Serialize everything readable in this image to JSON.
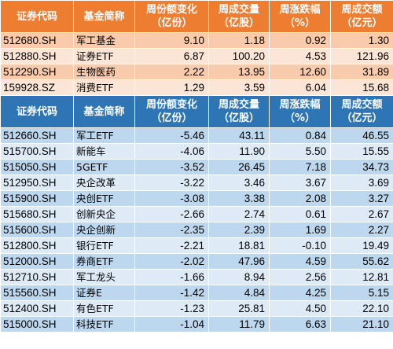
{
  "headers": [
    "证券代码",
    "基金简称",
    "周份额变化（亿份）",
    "周成交量（亿股）",
    "周涨跌幅（%）",
    "周成交额（亿元）"
  ],
  "top_rows": [
    [
      "512680.SH",
      "军工基金",
      "9.10",
      "1.18",
      "0.92",
      "1.30"
    ],
    [
      "512880.SH",
      "证券ETF",
      "6.87",
      "100.20",
      "4.53",
      "121.96"
    ],
    [
      "512290.SH",
      "生物医药",
      "2.22",
      "13.95",
      "12.60",
      "31.89"
    ],
    [
      "159928.SZ",
      "消费ETF",
      "1.29",
      "3.59",
      "6.04",
      "15.68"
    ]
  ],
  "bottom_rows": [
    [
      "512660.SH",
      "军工ETF",
      "-5.46",
      "43.11",
      "0.84",
      "46.55"
    ],
    [
      "515700.SH",
      "新能车",
      "-4.06",
      "11.90",
      "5.50",
      "15.55"
    ],
    [
      "515050.SH",
      "5GETF",
      "-3.52",
      "26.45",
      "7.18",
      "34.73"
    ],
    [
      "512950.SH",
      "央企改革",
      "-3.22",
      "3.46",
      "3.67",
      "3.69"
    ],
    [
      "515900.SH",
      "央创ETF",
      "-3.08",
      "3.38",
      "2.08",
      "3.27"
    ],
    [
      "515680.SH",
      "创新央企",
      "-2.66",
      "2.74",
      "0.61",
      "2.67"
    ],
    [
      "515600.SH",
      "央企创新",
      "-2.35",
      "2.39",
      "1.69",
      "2.27"
    ],
    [
      "512800.SH",
      "银行ETF",
      "-2.21",
      "18.81",
      "-0.10",
      "19.49"
    ],
    [
      "512000.SH",
      "券商ETF",
      "-2.02",
      "47.96",
      "4.59",
      "55.62"
    ],
    [
      "512710.SH",
      "军工龙头",
      "-1.66",
      "8.94",
      "2.56",
      "12.81"
    ],
    [
      "515560.SH",
      "证券E",
      "-1.42",
      "4.84",
      "4.25",
      "5.15"
    ],
    [
      "512400.SH",
      "有色ETF",
      "-1.23",
      "25.81",
      "4.50",
      "22.10"
    ],
    [
      "515000.SH",
      "科技ETF",
      "-1.04",
      "11.79",
      "6.63",
      "21.10"
    ]
  ],
  "colors": {
    "top_header": "#ed7d31",
    "top_row_dark": "#f8cbad",
    "top_row_light": "#fbe5d6",
    "bottom_header": "#2e75b6",
    "bottom_row_dark": "#bdd7ee",
    "bottom_row_light": "#deebf7"
  }
}
